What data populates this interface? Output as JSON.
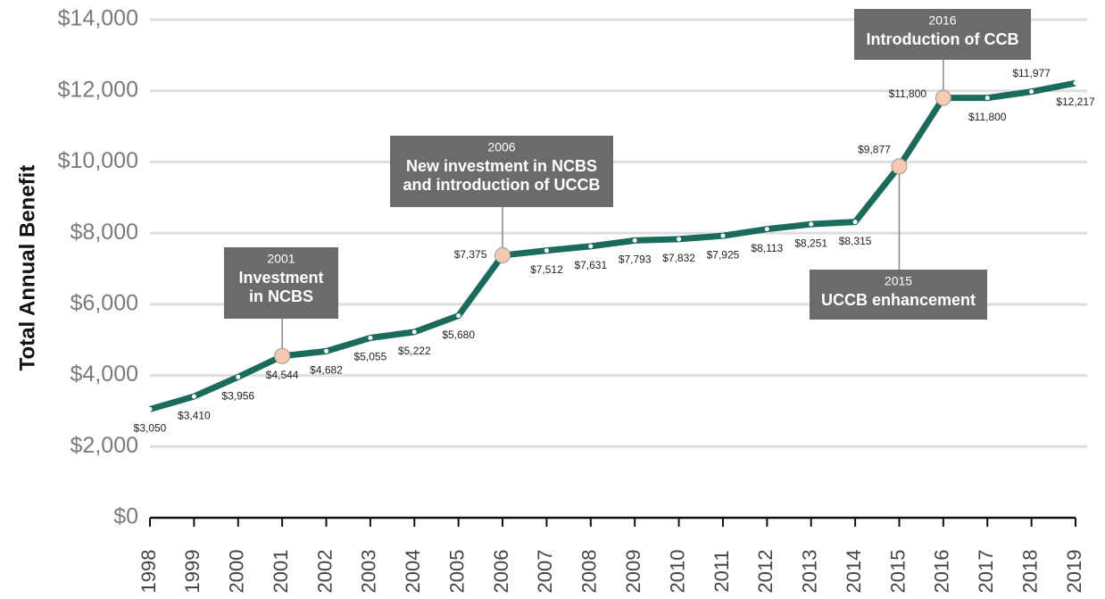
{
  "chart_data": {
    "type": "line",
    "y_label": "Total Annual Benefit",
    "categories": [
      "1998",
      "1999",
      "2000",
      "2001",
      "2002",
      "2003",
      "2004",
      "2005",
      "2006",
      "2007",
      "2008",
      "2009",
      "2010",
      "2011",
      "2012",
      "2013",
      "2014",
      "2015",
      "2016",
      "2017",
      "2018",
      "2019"
    ],
    "values": [
      3050,
      3410,
      3956,
      4544,
      4682,
      5055,
      5222,
      5680,
      7375,
      7512,
      7631,
      7793,
      7832,
      7925,
      8113,
      8251,
      8315,
      9877,
      11800,
      11800,
      11977,
      12217
    ],
    "value_labels": [
      "$3,050",
      "$3,410",
      "$3,956",
      "$4,544",
      "$4,682",
      "$5,055",
      "$5,222",
      "$5,680",
      "$7,375",
      "$7,512",
      "$7,631",
      "$7,793",
      "$7,832",
      "$7,925",
      "$8,113",
      "$8,251",
      "$8,315",
      "$9,877",
      "$11,800",
      "$11,800",
      "$11,977",
      "$12,217"
    ],
    "color": "#1b6b5d",
    "ylim": [
      0,
      14000
    ],
    "yticks": [
      {
        "value": 0,
        "label": "$0"
      },
      {
        "value": 2000,
        "label": "$2,000"
      },
      {
        "value": 4000,
        "label": "$4,000"
      },
      {
        "value": 6000,
        "label": "$6,000"
      },
      {
        "value": 8000,
        "label": "$8,000"
      },
      {
        "value": 10000,
        "label": "$10,000"
      },
      {
        "value": 12000,
        "label": "$12,000"
      },
      {
        "value": 14000,
        "label": "$14,000"
      }
    ],
    "grid": true,
    "annotations": [
      {
        "year": "2001",
        "lines": [
          "Investment",
          "in NCBS"
        ]
      },
      {
        "year": "2006",
        "lines": [
          "New investment in NCBS",
          "and introduction of UCCB"
        ]
      },
      {
        "year": "2015",
        "lines": [
          "UCCB enhancement"
        ]
      },
      {
        "year": "2016",
        "lines": [
          "Introduction of CCB"
        ]
      }
    ]
  }
}
